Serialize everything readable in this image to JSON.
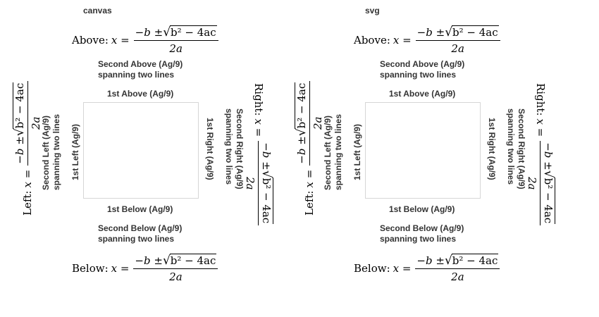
{
  "panels": [
    {
      "label": "canvas",
      "above_formula_label": "Above:",
      "below_formula_label": "Below:",
      "left_formula_label": "Left:",
      "right_formula_label": "Right:",
      "second_above": [
        "Second Above (Ag/9)",
        "spanning two lines"
      ],
      "first_above": "1st Above (Ag/9)",
      "first_below": "1st Below (Ag/9)",
      "second_below": [
        "Second Below (Ag/9)",
        "spanning two lines"
      ],
      "first_left": "1st Left (Ag/9)",
      "second_left": [
        "Second Left (Ag/9)",
        "spanning two lines"
      ],
      "first_right": "1st Right (Ag/9)",
      "second_right": [
        "Second Right (Ag/9)",
        "spanning two lines"
      ]
    },
    {
      "label": "svg",
      "above_formula_label": "Above:",
      "below_formula_label": "Below:",
      "left_formula_label": "Left:",
      "right_formula_label": "Right:",
      "second_above": [
        "Second Above (Ag/9)",
        "spanning two lines"
      ],
      "first_above": "1st Above (Ag/9)",
      "first_below": "1st Below (Ag/9)",
      "second_below": [
        "Second Below (Ag/9)",
        "spanning two lines"
      ],
      "first_left": "1st Left (Ag/9)",
      "second_left": [
        "Second Left (Ag/9)",
        "spanning two lines"
      ],
      "first_right": "1st Right (Ag/9)",
      "second_right": [
        "Second Right (Ag/9)",
        "spanning two lines"
      ]
    }
  ],
  "formula": {
    "lhs": "x =",
    "numerator_prefix": "−b ± ",
    "radical": "√",
    "radicand": "b² − 4ac",
    "denominator": "2a"
  }
}
